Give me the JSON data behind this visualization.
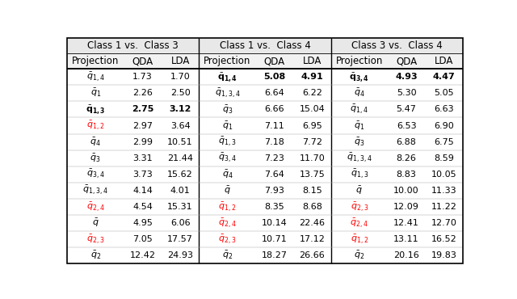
{
  "group_headers": [
    "Class 1 vs.  Class 3",
    "Class 1 vs.  Class 4",
    "Class 3 vs.  Class 4"
  ],
  "col_names": [
    "Projection",
    "QDA",
    "LDA"
  ],
  "rows": [
    {
      "c1_proj": "$\\bar{q}_{1,4}$",
      "c1_proj_color": "black",
      "c1_proj_bold": false,
      "c1_qda": "1.73",
      "c1_qda_bold": false,
      "c1_lda": "1.70",
      "c1_lda_bold": false,
      "c2_proj": "$\\bar{\\mathbf{q}}_{\\mathbf{1,4}}$",
      "c2_proj_color": "black",
      "c2_proj_bold": true,
      "c2_qda": "5.08",
      "c2_qda_bold": true,
      "c2_lda": "4.91",
      "c2_lda_bold": true,
      "c3_proj": "$\\bar{\\mathbf{q}}_{\\mathbf{3,4}}$",
      "c3_proj_color": "black",
      "c3_proj_bold": true,
      "c3_qda": "4.93",
      "c3_qda_bold": true,
      "c3_lda": "4.47",
      "c3_lda_bold": true
    },
    {
      "c1_proj": "$\\bar{q}_{1}$",
      "c1_proj_color": "black",
      "c1_proj_bold": false,
      "c1_qda": "2.26",
      "c1_qda_bold": false,
      "c1_lda": "2.50",
      "c1_lda_bold": false,
      "c2_proj": "$\\bar{q}_{1,3,4}$",
      "c2_proj_color": "black",
      "c2_proj_bold": false,
      "c2_qda": "6.64",
      "c2_qda_bold": false,
      "c2_lda": "6.22",
      "c2_lda_bold": false,
      "c3_proj": "$\\bar{q}_{4}$",
      "c3_proj_color": "black",
      "c3_proj_bold": false,
      "c3_qda": "5.30",
      "c3_qda_bold": false,
      "c3_lda": "5.05",
      "c3_lda_bold": false
    },
    {
      "c1_proj": "$\\bar{\\mathbf{q}}_{\\mathbf{1,3}}$",
      "c1_proj_color": "black",
      "c1_proj_bold": true,
      "c1_qda": "2.75",
      "c1_qda_bold": true,
      "c1_lda": "3.12",
      "c1_lda_bold": true,
      "c2_proj": "$\\bar{q}_{3}$",
      "c2_proj_color": "black",
      "c2_proj_bold": false,
      "c2_qda": "6.66",
      "c2_qda_bold": false,
      "c2_lda": "15.04",
      "c2_lda_bold": false,
      "c3_proj": "$\\bar{q}_{1,4}$",
      "c3_proj_color": "black",
      "c3_proj_bold": false,
      "c3_qda": "5.47",
      "c3_qda_bold": false,
      "c3_lda": "6.63",
      "c3_lda_bold": false
    },
    {
      "c1_proj": "$\\bar{q}_{1,2}$",
      "c1_proj_color": "red",
      "c1_proj_bold": false,
      "c1_qda": "2.97",
      "c1_qda_bold": false,
      "c1_lda": "3.64",
      "c1_lda_bold": false,
      "c2_proj": "$\\bar{q}_{1}$",
      "c2_proj_color": "black",
      "c2_proj_bold": false,
      "c2_qda": "7.11",
      "c2_qda_bold": false,
      "c2_lda": "6.95",
      "c2_lda_bold": false,
      "c3_proj": "$\\bar{q}_{1}$",
      "c3_proj_color": "black",
      "c3_proj_bold": false,
      "c3_qda": "6.53",
      "c3_qda_bold": false,
      "c3_lda": "6.90",
      "c3_lda_bold": false
    },
    {
      "c1_proj": "$\\bar{q}_{4}$",
      "c1_proj_color": "black",
      "c1_proj_bold": false,
      "c1_qda": "2.99",
      "c1_qda_bold": false,
      "c1_lda": "10.51",
      "c1_lda_bold": false,
      "c2_proj": "$\\bar{q}_{1,3}$",
      "c2_proj_color": "black",
      "c2_proj_bold": false,
      "c2_qda": "7.18",
      "c2_qda_bold": false,
      "c2_lda": "7.72",
      "c2_lda_bold": false,
      "c3_proj": "$\\bar{q}_{3}$",
      "c3_proj_color": "black",
      "c3_proj_bold": false,
      "c3_qda": "6.88",
      "c3_qda_bold": false,
      "c3_lda": "6.75",
      "c3_lda_bold": false
    },
    {
      "c1_proj": "$\\bar{q}_{3}$",
      "c1_proj_color": "black",
      "c1_proj_bold": false,
      "c1_qda": "3.31",
      "c1_qda_bold": false,
      "c1_lda": "21.44",
      "c1_lda_bold": false,
      "c2_proj": "$\\bar{q}_{3,4}$",
      "c2_proj_color": "black",
      "c2_proj_bold": false,
      "c2_qda": "7.23",
      "c2_qda_bold": false,
      "c2_lda": "11.70",
      "c2_lda_bold": false,
      "c3_proj": "$\\bar{q}_{1,3,4}$",
      "c3_proj_color": "black",
      "c3_proj_bold": false,
      "c3_qda": "8.26",
      "c3_qda_bold": false,
      "c3_lda": "8.59",
      "c3_lda_bold": false
    },
    {
      "c1_proj": "$\\bar{q}_{3,4}$",
      "c1_proj_color": "black",
      "c1_proj_bold": false,
      "c1_qda": "3.73",
      "c1_qda_bold": false,
      "c1_lda": "15.62",
      "c1_lda_bold": false,
      "c2_proj": "$\\bar{q}_{4}$",
      "c2_proj_color": "black",
      "c2_proj_bold": false,
      "c2_qda": "7.64",
      "c2_qda_bold": false,
      "c2_lda": "13.75",
      "c2_lda_bold": false,
      "c3_proj": "$\\bar{q}_{1,3}$",
      "c3_proj_color": "black",
      "c3_proj_bold": false,
      "c3_qda": "8.83",
      "c3_qda_bold": false,
      "c3_lda": "10.05",
      "c3_lda_bold": false
    },
    {
      "c1_proj": "$\\bar{q}_{1,3,4}$",
      "c1_proj_color": "black",
      "c1_proj_bold": false,
      "c1_qda": "4.14",
      "c1_qda_bold": false,
      "c1_lda": "4.01",
      "c1_lda_bold": false,
      "c2_proj": "$\\bar{q}$",
      "c2_proj_color": "black",
      "c2_proj_bold": false,
      "c2_qda": "7.93",
      "c2_qda_bold": false,
      "c2_lda": "8.15",
      "c2_lda_bold": false,
      "c3_proj": "$\\bar{q}$",
      "c3_proj_color": "black",
      "c3_proj_bold": false,
      "c3_qda": "10.00",
      "c3_qda_bold": false,
      "c3_lda": "11.33",
      "c3_lda_bold": false
    },
    {
      "c1_proj": "$\\bar{q}_{2,4}$",
      "c1_proj_color": "red",
      "c1_proj_bold": false,
      "c1_qda": "4.54",
      "c1_qda_bold": false,
      "c1_lda": "15.31",
      "c1_lda_bold": false,
      "c2_proj": "$\\bar{q}_{1,2}$",
      "c2_proj_color": "red",
      "c2_proj_bold": false,
      "c2_qda": "8.35",
      "c2_qda_bold": false,
      "c2_lda": "8.68",
      "c2_lda_bold": false,
      "c3_proj": "$\\bar{q}_{2,3}$",
      "c3_proj_color": "red",
      "c3_proj_bold": false,
      "c3_qda": "12.09",
      "c3_qda_bold": false,
      "c3_lda": "11.22",
      "c3_lda_bold": false
    },
    {
      "c1_proj": "$\\bar{q}$",
      "c1_proj_color": "black",
      "c1_proj_bold": false,
      "c1_qda": "4.95",
      "c1_qda_bold": false,
      "c1_lda": "6.06",
      "c1_lda_bold": false,
      "c2_proj": "$\\bar{q}_{2,4}$",
      "c2_proj_color": "red",
      "c2_proj_bold": false,
      "c2_qda": "10.14",
      "c2_qda_bold": false,
      "c2_lda": "22.46",
      "c2_lda_bold": false,
      "c3_proj": "$\\bar{q}_{2,4}$",
      "c3_proj_color": "red",
      "c3_proj_bold": false,
      "c3_qda": "12.41",
      "c3_qda_bold": false,
      "c3_lda": "12.70",
      "c3_lda_bold": false
    },
    {
      "c1_proj": "$\\bar{q}_{2,3}$",
      "c1_proj_color": "red",
      "c1_proj_bold": false,
      "c1_qda": "7.05",
      "c1_qda_bold": false,
      "c1_lda": "17.57",
      "c1_lda_bold": false,
      "c2_proj": "$\\bar{q}_{2,3}$",
      "c2_proj_color": "red",
      "c2_proj_bold": false,
      "c2_qda": "10.71",
      "c2_qda_bold": false,
      "c2_lda": "17.12",
      "c2_lda_bold": false,
      "c3_proj": "$\\bar{q}_{1,2}$",
      "c3_proj_color": "red",
      "c3_proj_bold": false,
      "c3_qda": "13.11",
      "c3_qda_bold": false,
      "c3_lda": "16.52",
      "c3_lda_bold": false
    },
    {
      "c1_proj": "$\\bar{q}_{2}$",
      "c1_proj_color": "black",
      "c1_proj_bold": false,
      "c1_qda": "12.42",
      "c1_qda_bold": false,
      "c1_lda": "24.93",
      "c1_lda_bold": false,
      "c2_proj": "$\\bar{q}_{2}$",
      "c2_proj_color": "black",
      "c2_proj_bold": false,
      "c2_qda": "18.27",
      "c2_qda_bold": false,
      "c2_lda": "26.66",
      "c2_lda_bold": false,
      "c3_proj": "$\\bar{q}_{2}$",
      "c3_proj_color": "black",
      "c3_proj_bold": false,
      "c3_qda": "20.16",
      "c3_qda_bold": false,
      "c3_lda": "19.83",
      "c3_lda_bold": false
    }
  ],
  "bg_color": "#ffffff",
  "header_bg": "#e8e8e8",
  "col_header_bg": "#f2f2f2",
  "outer_lw": 1.2,
  "sep_lw": 1.0,
  "col_sep_lw": 0.6,
  "data_font_size": 8.0,
  "header_font_size": 8.5,
  "col_header_font_size": 8.5
}
